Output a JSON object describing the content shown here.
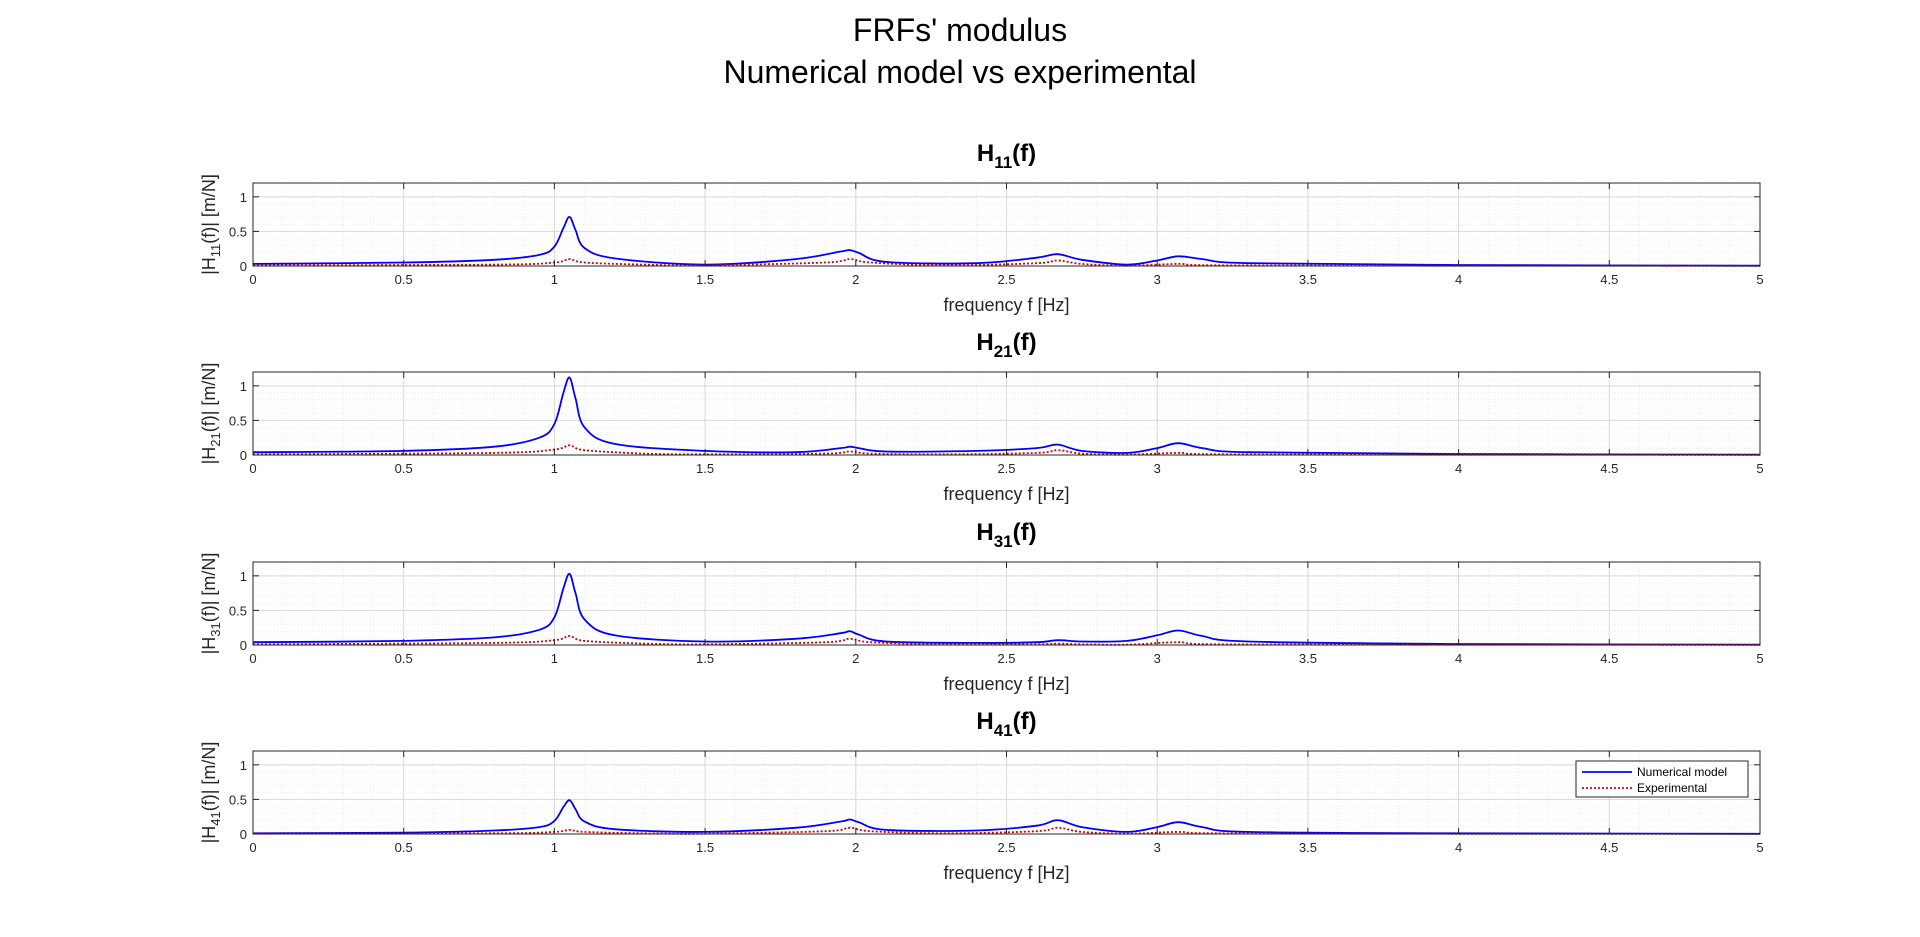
{
  "figure": {
    "title_line1": "FRFs' modulus",
    "title_line2": "Numerical model vs experimental"
  },
  "colors": {
    "numerical": "#0000ff",
    "experimental": "#d40000",
    "grid_major": "#d9d9d9",
    "grid_minor": "#ececec",
    "axes": "#262626"
  },
  "legend": {
    "location": "top-right of bottom subplot",
    "entries": [
      "Numerical model",
      "Experimental"
    ]
  },
  "chart_data": [
    {
      "type": "line",
      "title": "H11(f)",
      "title_main": "H",
      "title_sub": "11",
      "title_tail": "(f)",
      "xlabel": "frequency f [Hz]",
      "ylabel_pre": "|H",
      "ylabel_sub": "11",
      "ylabel_post": "(f)|   [m/N]",
      "xlim": [
        0,
        5
      ],
      "ylim": [
        0,
        1.2
      ],
      "xticks": [
        0,
        0.5,
        1,
        1.5,
        2,
        2.5,
        3,
        3.5,
        4,
        4.5,
        5
      ],
      "xtick_labels": [
        "0",
        "0.5",
        "1",
        "1.5",
        "2",
        "2.5",
        "3",
        "3.5",
        "4",
        "4.5",
        "5"
      ],
      "yticks": [
        0,
        0.5,
        1
      ],
      "ytick_labels": [
        "0",
        "0.5",
        "1"
      ],
      "grid": true,
      "minor_grid": true,
      "series": [
        {
          "name": "Numerical model",
          "style": "solid",
          "x": [
            0,
            0.5,
            0.8,
            0.95,
            1.0,
            1.03,
            1.05,
            1.07,
            1.1,
            1.2,
            1.5,
            1.8,
            1.95,
            1.98,
            2.01,
            2.1,
            2.4,
            2.6,
            2.67,
            2.75,
            2.9,
            3.0,
            3.07,
            3.15,
            3.3,
            4,
            5
          ],
          "y": [
            0.03,
            0.05,
            0.09,
            0.16,
            0.28,
            0.55,
            0.71,
            0.52,
            0.26,
            0.11,
            0.02,
            0.1,
            0.21,
            0.23,
            0.19,
            0.06,
            0.04,
            0.12,
            0.17,
            0.09,
            0.02,
            0.08,
            0.14,
            0.1,
            0.04,
            0.015,
            0.005
          ]
        },
        {
          "name": "Experimental",
          "style": "dotted",
          "x": [
            0,
            0.8,
            1.0,
            1.05,
            1.1,
            1.3,
            1.5,
            1.9,
            1.98,
            2.05,
            2.3,
            2.6,
            2.67,
            2.75,
            2.9,
            3.07,
            3.2,
            4,
            5
          ],
          "y": [
            0.01,
            0.02,
            0.05,
            0.1,
            0.05,
            0.02,
            0.01,
            0.05,
            0.1,
            0.05,
            0.01,
            0.04,
            0.08,
            0.03,
            0.005,
            0.03,
            0.01,
            0.005,
            0.002
          ]
        }
      ]
    },
    {
      "type": "line",
      "title": "H21(f)",
      "title_main": "H",
      "title_sub": "21",
      "title_tail": "(f)",
      "xlabel": "frequency f [Hz]",
      "ylabel_pre": "|H",
      "ylabel_sub": "21",
      "ylabel_post": "(f)|   [m/N]",
      "xlim": [
        0,
        5
      ],
      "ylim": [
        0,
        1.2
      ],
      "xticks": [
        0,
        0.5,
        1,
        1.5,
        2,
        2.5,
        3,
        3.5,
        4,
        4.5,
        5
      ],
      "xtick_labels": [
        "0",
        "0.5",
        "1",
        "1.5",
        "2",
        "2.5",
        "3",
        "3.5",
        "4",
        "4.5",
        "5"
      ],
      "yticks": [
        0,
        0.5,
        1
      ],
      "ytick_labels": [
        "0",
        "0.5",
        "1"
      ],
      "grid": true,
      "minor_grid": true,
      "series": [
        {
          "name": "Numerical model",
          "style": "solid",
          "x": [
            0,
            0.5,
            0.8,
            0.95,
            1.0,
            1.03,
            1.05,
            1.07,
            1.1,
            1.2,
            1.5,
            1.8,
            1.95,
            1.98,
            2.01,
            2.1,
            2.4,
            2.6,
            2.67,
            2.75,
            2.9,
            3.0,
            3.07,
            3.15,
            3.3,
            4,
            5
          ],
          "y": [
            0.04,
            0.06,
            0.12,
            0.25,
            0.45,
            0.9,
            1.12,
            0.82,
            0.4,
            0.16,
            0.06,
            0.04,
            0.1,
            0.12,
            0.1,
            0.05,
            0.06,
            0.1,
            0.15,
            0.06,
            0.03,
            0.1,
            0.17,
            0.1,
            0.04,
            0.015,
            0.005
          ]
        },
        {
          "name": "Experimental",
          "style": "dotted",
          "x": [
            0,
            0.8,
            1.0,
            1.05,
            1.1,
            1.3,
            1.5,
            1.9,
            1.98,
            2.05,
            2.3,
            2.6,
            2.67,
            2.75,
            2.9,
            3.07,
            3.2,
            4,
            5
          ],
          "y": [
            0.01,
            0.03,
            0.08,
            0.14,
            0.07,
            0.02,
            0.01,
            0.02,
            0.05,
            0.02,
            0.01,
            0.03,
            0.07,
            0.02,
            0.005,
            0.03,
            0.01,
            0.005,
            0.002
          ]
        }
      ]
    },
    {
      "type": "line",
      "title": "H31(f)",
      "title_main": "H",
      "title_sub": "31",
      "title_tail": "(f)",
      "xlabel": "frequency f [Hz]",
      "ylabel_pre": "|H",
      "ylabel_sub": "31",
      "ylabel_post": "(f)|   [m/N]",
      "xlim": [
        0,
        5
      ],
      "ylim": [
        0,
        1.2
      ],
      "xticks": [
        0,
        0.5,
        1,
        1.5,
        2,
        2.5,
        3,
        3.5,
        4,
        4.5,
        5
      ],
      "xtick_labels": [
        "0",
        "0.5",
        "1",
        "1.5",
        "2",
        "2.5",
        "3",
        "3.5",
        "4",
        "4.5",
        "5"
      ],
      "yticks": [
        0,
        0.5,
        1
      ],
      "ytick_labels": [
        "0",
        "0.5",
        "1"
      ],
      "grid": true,
      "minor_grid": true,
      "series": [
        {
          "name": "Numerical model",
          "style": "solid",
          "x": [
            0,
            0.5,
            0.8,
            0.95,
            1.0,
            1.03,
            1.05,
            1.07,
            1.1,
            1.2,
            1.5,
            1.8,
            1.95,
            1.98,
            2.01,
            2.1,
            2.4,
            2.6,
            2.67,
            2.75,
            2.9,
            3.0,
            3.07,
            3.15,
            3.3,
            4,
            5
          ],
          "y": [
            0.04,
            0.06,
            0.11,
            0.22,
            0.4,
            0.82,
            1.03,
            0.75,
            0.37,
            0.14,
            0.05,
            0.09,
            0.17,
            0.2,
            0.15,
            0.05,
            0.03,
            0.04,
            0.07,
            0.05,
            0.06,
            0.14,
            0.21,
            0.13,
            0.05,
            0.015,
            0.005
          ]
        },
        {
          "name": "Experimental",
          "style": "dotted",
          "x": [
            0,
            0.8,
            1.0,
            1.05,
            1.1,
            1.3,
            1.5,
            1.9,
            1.98,
            2.05,
            2.3,
            2.6,
            2.67,
            2.75,
            2.9,
            3.07,
            3.2,
            4,
            5
          ],
          "y": [
            0.01,
            0.03,
            0.07,
            0.13,
            0.06,
            0.02,
            0.01,
            0.04,
            0.09,
            0.04,
            0.01,
            0.01,
            0.02,
            0.01,
            0.005,
            0.04,
            0.01,
            0.005,
            0.002
          ]
        }
      ]
    },
    {
      "type": "line",
      "title": "H41(f)",
      "title_main": "H",
      "title_sub": "41",
      "title_tail": "(f)",
      "xlabel": "frequency f [Hz]",
      "ylabel_pre": "|H",
      "ylabel_sub": "41",
      "ylabel_post": "(f)|   [m/N]",
      "xlim": [
        0,
        5
      ],
      "ylim": [
        0,
        1.2
      ],
      "xticks": [
        0,
        0.5,
        1,
        1.5,
        2,
        2.5,
        3,
        3.5,
        4,
        4.5,
        5
      ],
      "xtick_labels": [
        "0",
        "0.5",
        "1",
        "1.5",
        "2",
        "2.5",
        "3",
        "3.5",
        "4",
        "4.5",
        "5"
      ],
      "yticks": [
        0,
        0.5,
        1
      ],
      "ytick_labels": [
        "0",
        "0.5",
        "1"
      ],
      "grid": true,
      "minor_grid": true,
      "series": [
        {
          "name": "Numerical model",
          "style": "solid",
          "x": [
            0,
            0.5,
            0.8,
            0.95,
            1.0,
            1.03,
            1.05,
            1.07,
            1.1,
            1.2,
            1.5,
            1.8,
            1.95,
            1.98,
            2.01,
            2.1,
            2.4,
            2.6,
            2.67,
            2.75,
            2.9,
            3.0,
            3.07,
            3.15,
            3.3,
            4,
            5
          ],
          "y": [
            0.01,
            0.02,
            0.05,
            0.1,
            0.19,
            0.39,
            0.49,
            0.36,
            0.18,
            0.07,
            0.03,
            0.09,
            0.18,
            0.21,
            0.17,
            0.06,
            0.05,
            0.12,
            0.2,
            0.1,
            0.03,
            0.1,
            0.17,
            0.1,
            0.03,
            0.01,
            0.003
          ]
        },
        {
          "name": "Experimental",
          "style": "dotted",
          "x": [
            0,
            0.8,
            1.0,
            1.05,
            1.1,
            1.3,
            1.5,
            1.9,
            1.98,
            2.05,
            2.3,
            2.6,
            2.67,
            2.75,
            2.9,
            3.07,
            3.2,
            4,
            5
          ],
          "y": [
            0.005,
            0.01,
            0.03,
            0.06,
            0.03,
            0.01,
            0.005,
            0.04,
            0.09,
            0.04,
            0.01,
            0.04,
            0.09,
            0.03,
            0.005,
            0.03,
            0.01,
            0.003,
            0.001
          ]
        }
      ]
    }
  ]
}
